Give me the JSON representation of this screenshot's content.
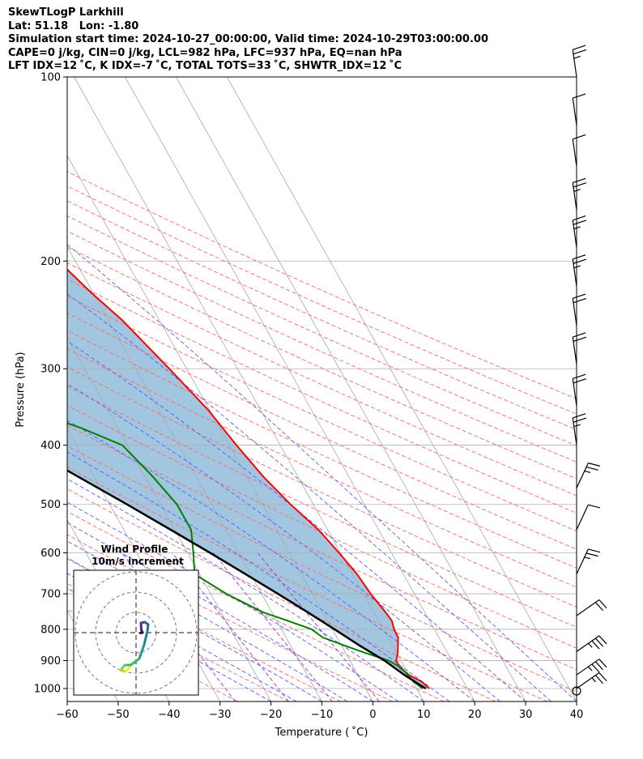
{
  "header": {
    "title": "SkewTLogP Larkhill",
    "location": "Lat: 51.18   Lon: -1.80",
    "times": "Simulation start time: 2024-10-27_00:00:00, Valid time: 2024-10-29T03:00:00.00",
    "params1": "CAPE=0 j/kg, CIN=0 j/kg, LCL=982 hPa, LFC=937 hPa, EQ=nan hPa",
    "params2": "LFT IDX=12 ˚C, K IDX=-7 ˚C, TOTAL TOTS=33 ˚C, SHWTR_IDX=12 ˚C"
  },
  "chart_data": {
    "type": "line",
    "subtype": "skew-T log-P",
    "xlabel": "Temperature ( ˚C)",
    "ylabel": "Pressure (hPa)",
    "xlim": [
      -60,
      40
    ],
    "ylim": [
      1050,
      100
    ],
    "y_scale": "log",
    "x_ticks": [
      -60,
      -50,
      -40,
      -30,
      -20,
      -10,
      0,
      10,
      20,
      30,
      40
    ],
    "y_ticks": [
      100,
      200,
      300,
      400,
      500,
      600,
      700,
      800,
      900,
      1000
    ],
    "grid": true,
    "colors": {
      "temperature": "#ff0000",
      "dewpoint": "#008000",
      "parcel": "#000000",
      "shading": "#a2c6df",
      "dry_adiabat": "#ff6666",
      "moist_adiabat": "#5a5aff",
      "mixing_ratio": "#9a32cd",
      "isotherm": "#aaaaaa"
    },
    "series": [
      {
        "name": "temperature",
        "points": [
          [
            1000,
            12.5
          ],
          [
            975,
            11.8
          ],
          [
            950,
            10.0
          ],
          [
            925,
            9.0
          ],
          [
            900,
            9.1
          ],
          [
            875,
            10.2
          ],
          [
            850,
            11.1
          ],
          [
            825,
            12.0
          ],
          [
            800,
            12.1
          ],
          [
            775,
            12.6
          ],
          [
            750,
            12.3
          ],
          [
            700,
            11.4
          ],
          [
            650,
            10.9
          ],
          [
            600,
            9.7
          ],
          [
            550,
            8.2
          ],
          [
            500,
            5.5
          ],
          [
            450,
            3.2
          ],
          [
            400,
            1.4
          ],
          [
            350,
            -0.3
          ],
          [
            300,
            -3.4
          ],
          [
            250,
            -7.3
          ],
          [
            225,
            -10.4
          ],
          [
            200,
            -13.3
          ],
          [
            175,
            -17.1
          ],
          [
            150,
            -21.6
          ],
          [
            125,
            -26.3
          ],
          [
            100,
            -31.2
          ]
        ]
      },
      {
        "name": "dewpoint",
        "points": [
          [
            1000,
            11.2
          ],
          [
            975,
            10.2
          ],
          [
            950,
            9.8
          ],
          [
            925,
            9.3
          ],
          [
            900,
            7.6
          ],
          [
            875,
            3.9
          ],
          [
            850,
            0.5
          ],
          [
            825,
            -2.8
          ],
          [
            800,
            -4.1
          ],
          [
            775,
            -7.8
          ],
          [
            750,
            -11.8
          ],
          [
            700,
            -16.9
          ],
          [
            650,
            -21.0
          ],
          [
            600,
            -18.9
          ],
          [
            550,
            -16.8
          ],
          [
            500,
            -16.8
          ],
          [
            450,
            -18.5
          ],
          [
            400,
            -21.0
          ],
          [
            375,
            -27.2
          ],
          [
            350,
            -35.6
          ],
          [
            325,
            -34.2
          ],
          [
            300,
            -38.5
          ],
          [
            275,
            -40.7
          ],
          [
            250,
            -43.3
          ],
          [
            225,
            -46.6
          ],
          [
            200,
            -50.4
          ],
          [
            175,
            -55.5
          ],
          [
            150,
            -62.2
          ],
          [
            125,
            -66.7
          ],
          [
            100,
            -69.5
          ]
        ]
      },
      {
        "name": "parcel",
        "points": [
          [
            1000,
            11.8
          ],
          [
            950,
            9.1
          ],
          [
            900,
            6.8
          ],
          [
            850,
            3.5
          ],
          [
            800,
            0.4
          ],
          [
            750,
            -3.0
          ],
          [
            700,
            -6.8
          ],
          [
            650,
            -11.0
          ],
          [
            600,
            -15.6
          ],
          [
            550,
            -20.8
          ],
          [
            500,
            -26.6
          ],
          [
            450,
            -33.2
          ],
          [
            400,
            -40.5
          ],
          [
            350,
            -48.5
          ],
          [
            300,
            -57.3
          ],
          [
            250,
            -67.0
          ],
          [
            200,
            -78.5
          ],
          [
            150,
            -92.0
          ],
          [
            100,
            -108.0
          ]
        ]
      }
    ],
    "wind_barbs": [
      {
        "p": 100,
        "speed_kt": 15
      },
      {
        "p": 120,
        "speed_kt": 10
      },
      {
        "p": 140,
        "speed_kt": 10
      },
      {
        "p": 165,
        "speed_kt": 15
      },
      {
        "p": 190,
        "speed_kt": 15
      },
      {
        "p": 220,
        "speed_kt": 15
      },
      {
        "p": 255,
        "speed_kt": 20
      },
      {
        "p": 295,
        "speed_kt": 20
      },
      {
        "p": 345,
        "speed_kt": 20
      },
      {
        "p": 400,
        "speed_kt": 15
      },
      {
        "p": 470,
        "speed_kt": 15
      },
      {
        "p": 550,
        "speed_kt": 10
      },
      {
        "p": 650,
        "speed_kt": 15
      },
      {
        "p": 760,
        "speed_kt": 20
      },
      {
        "p": 870,
        "speed_kt": 25
      },
      {
        "p": 950,
        "speed_kt": 25
      },
      {
        "p": 1000,
        "speed_kt": 15
      }
    ],
    "surface_calm": true,
    "inset": {
      "title": "Wind Profile",
      "subtitle": "10m/s increment",
      "type": "hodograph",
      "colormap": "viridis",
      "points": [
        [
          -1.5,
          -8.5
        ],
        [
          -2.5,
          -9.6
        ],
        [
          -3.8,
          -9.3
        ],
        [
          -2.8,
          -8.0
        ],
        [
          -1.3,
          -8.0
        ],
        [
          0.8,
          -6.4
        ],
        [
          2.0,
          -3.0
        ],
        [
          2.8,
          0.4
        ],
        [
          3.0,
          2.0
        ],
        [
          2.2,
          2.6
        ],
        [
          1.2,
          2.4
        ],
        [
          1.3,
          0.7
        ],
        [
          1.6,
          0.0
        ],
        [
          1.1,
          -0.1
        ]
      ]
    }
  }
}
